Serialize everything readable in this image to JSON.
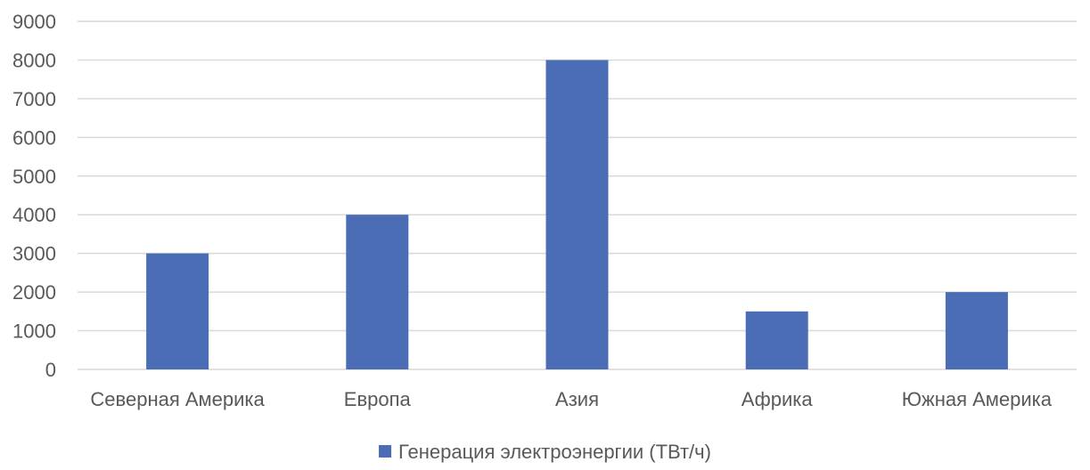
{
  "chart_data": {
    "type": "bar",
    "categories": [
      "Северная Америка",
      "Европа",
      "Азия",
      "Африка",
      "Южная Америка"
    ],
    "series": [
      {
        "name": "Генерация электроэнергии (ТВт/ч)",
        "values": [
          3000,
          4000,
          8000,
          1500,
          2000
        ],
        "color": "#4a6db5"
      }
    ],
    "ylim": [
      0,
      9000
    ],
    "yticks": [
      0,
      1000,
      2000,
      3000,
      4000,
      5000,
      6000,
      7000,
      8000,
      9000
    ],
    "grid": true,
    "legend_position": "bottom",
    "gridline_color": "#d9d9d9",
    "text_color": "#595959"
  }
}
